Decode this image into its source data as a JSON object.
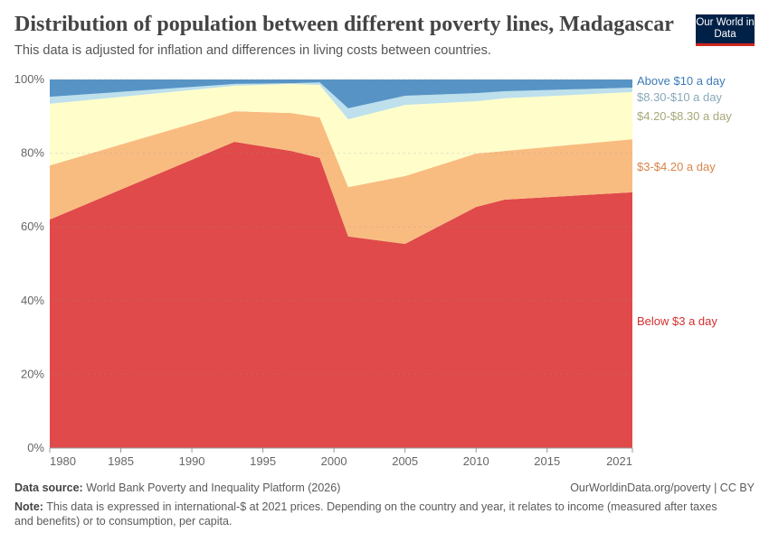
{
  "header": {
    "title": "Distribution of population between different poverty lines, Madagascar",
    "subtitle": "This data is adjusted for inflation and differences in living costs between countries.",
    "logo": "Our World in Data"
  },
  "footer": {
    "source_label": "Data source:",
    "source": "World Bank Poverty and Inequality Platform (2026)",
    "url": "OurWorldinData.org/poverty | CC BY",
    "note_label": "Note:",
    "note": "This data is expressed in international-$ at 2021 prices. Depending on the country and year, it relates to income (measured after taxes and benefits) or to consumption, per capita."
  },
  "chart_data": {
    "type": "area",
    "stacked": true,
    "x": [
      1980,
      1993,
      1997,
      1999,
      2001,
      2005,
      2010,
      2012,
      2021
    ],
    "xlim": [
      1980,
      2021
    ],
    "ylim": [
      0,
      100
    ],
    "xticks": [
      "1980",
      "1985",
      "1990",
      "1995",
      "2000",
      "2005",
      "2010",
      "2015",
      "2021"
    ],
    "yticks": [
      "0%",
      "20%",
      "40%",
      "60%",
      "80%",
      "100%"
    ],
    "grid": true,
    "legend": "right (inline labels)",
    "series": [
      {
        "name": "Below $3 a day",
        "color": "#e04a4a",
        "label_color": "#d42f2f",
        "values": [
          62.0,
          83.1,
          80.6,
          78.7,
          57.4,
          55.4,
          65.4,
          67.4,
          69.4
        ]
      },
      {
        "name": "$3-$4.20 a day",
        "color": "#f9bc80",
        "label_color": "#d9844a",
        "values": [
          14.7,
          8.3,
          10.3,
          11.0,
          13.4,
          18.4,
          14.5,
          13.2,
          14.4
        ]
      },
      {
        "name": "$4.20-$8.30 a day",
        "color": "#fffecb",
        "label_color": "#a8a77a",
        "values": [
          16.7,
          6.9,
          7.9,
          8.8,
          18.4,
          19.3,
          14.2,
          14.3,
          12.8
        ]
      },
      {
        "name": "$8.30-$10 a day",
        "color": "#bde0ec",
        "label_color": "#88a8b9",
        "values": [
          1.9,
          0.5,
          0.2,
          0.7,
          3.0,
          2.5,
          2.2,
          1.9,
          1.2
        ]
      },
      {
        "name": "Above $10 a day",
        "color": "#5794c5",
        "label_color": "#3d7bb8",
        "values": [
          4.7,
          1.2,
          1.0,
          0.8,
          7.8,
          4.4,
          3.7,
          3.2,
          2.2
        ]
      }
    ]
  }
}
